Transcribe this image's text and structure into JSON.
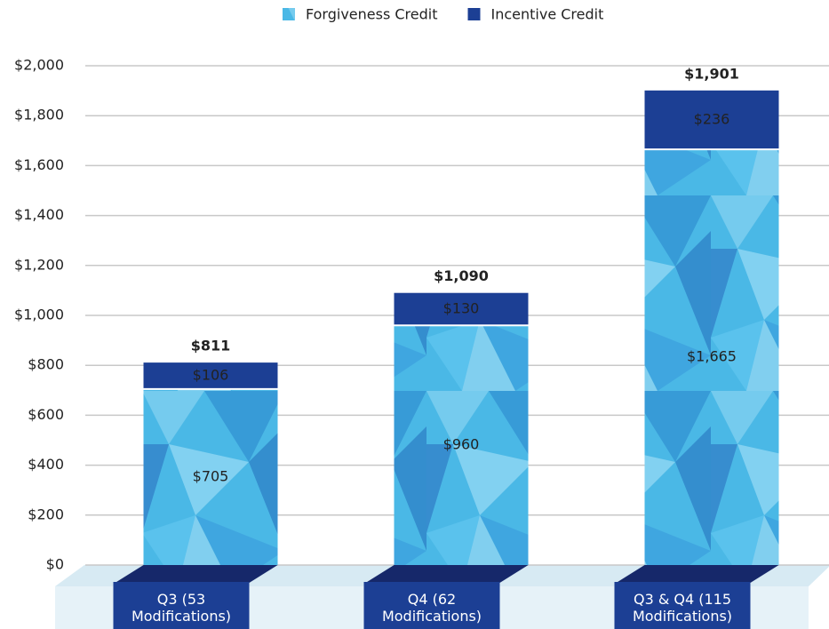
{
  "chart_data": {
    "type": "stacked_bar",
    "categories": [
      "Q3 (53 Modifications)",
      "Q4 (62 Modifications)",
      "Q3 & Q4 (115 Modifications)"
    ],
    "series": [
      {
        "name": "Forgiveness Credit",
        "color": "#4ab8e6",
        "values": [
          705,
          960,
          1665
        ],
        "value_labels": [
          "$705",
          "$960",
          "$1,665"
        ]
      },
      {
        "name": "Incentive Credit",
        "color": "#1c3f94",
        "values": [
          106,
          130,
          236
        ],
        "value_labels": [
          "$106",
          "$130",
          "$236"
        ]
      }
    ],
    "totals": [
      811,
      1090,
      1901
    ],
    "total_labels": [
      "$811",
      "$1,090",
      "$1,901"
    ],
    "ylim": [
      0,
      2000
    ],
    "yticks": [
      {
        "value": 0,
        "label": "$0"
      },
      {
        "value": 200,
        "label": "$200"
      },
      {
        "value": 400,
        "label": "$400"
      },
      {
        "value": 600,
        "label": "$600"
      },
      {
        "value": 800,
        "label": "$800"
      },
      {
        "value": 1000,
        "label": "$1,000"
      },
      {
        "value": 1200,
        "label": "$1,200"
      },
      {
        "value": 1400,
        "label": "$1,400"
      },
      {
        "value": 1600,
        "label": "$1,600"
      },
      {
        "value": 1800,
        "label": "$1,800"
      },
      {
        "value": 2000,
        "label": "$2,000"
      }
    ],
    "grid": true,
    "legend": "top"
  }
}
